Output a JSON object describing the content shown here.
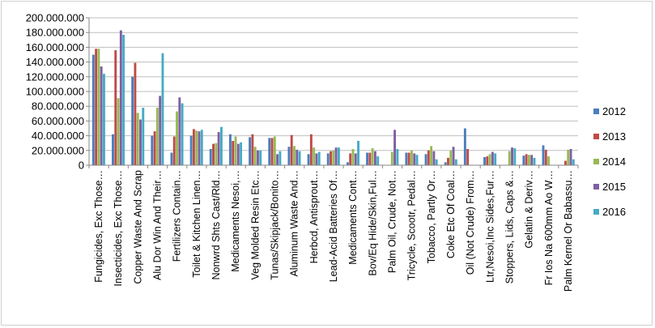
{
  "chart_data": {
    "type": "bar",
    "title": "",
    "xlabel": "",
    "ylabel": "",
    "ylim": [
      0,
      200000000
    ],
    "y_ticks": [
      "0",
      "20.000.000",
      "40.000.000",
      "60.000.000",
      "80.000.000",
      "100.000.000",
      "120.000.000",
      "140.000.000",
      "160.000.000",
      "180.000.000",
      "200.000.000"
    ],
    "grid": "horizontal",
    "legend_position": "right",
    "categories": [
      "Fungicides, Exc Those…",
      "Insecticides, Exc Those…",
      "Copper Waste And Scrap",
      "Alu Dor Win And Their…",
      "Fertilizers Contain…",
      "Toilet & Kitchen Linen…",
      "Nonwrd Shts Cast/Rld…",
      "Medicaments Nesoi,…",
      "Veg Molded Resin Etc…",
      "Tunas/Skipjack/Bonito…",
      "Aluminum Waste And…",
      "Herbcd, Antisprout…",
      "Lead-Acid Batteries Of…",
      "Medicaments Cont…",
      "Bov/Eq Hide/Skin,Ful…",
      "Palm Oil, Crude, Not…",
      "Tricycle, Scootr, Pedal…",
      "Tobacco, Partly Or…",
      "Coke Etc Of Coal…",
      "Oil (Not Crude) From…",
      "Ltr,Nesoi,Inc Sides,Fur…",
      "Stoppers, Lids, Caps &…",
      "Gelatin & Deriv…",
      "Fr Ios Na 600mm Ao W…",
      "Palm Kernel Or Babassu…"
    ],
    "series": [
      {
        "name": "2012",
        "color": "#4a7ebb",
        "values": [
          150000000,
          42000000,
          120000000,
          40000000,
          17000000,
          40000000,
          22000000,
          42000000,
          38000000,
          37000000,
          25000000,
          15000000,
          16000000,
          4000000,
          17000000,
          0,
          17000000,
          15000000,
          4000000,
          50000000,
          11000000,
          0,
          13000000,
          27000000,
          0
        ]
      },
      {
        "name": "2013",
        "color": "#be4b48",
        "values": [
          158000000,
          156000000,
          139000000,
          46000000,
          39000000,
          49000000,
          29000000,
          33000000,
          42000000,
          37000000,
          41000000,
          42000000,
          19000000,
          16000000,
          17000000,
          0,
          17000000,
          20000000,
          10000000,
          22000000,
          12000000,
          0,
          15000000,
          21000000,
          6000000
        ]
      },
      {
        "name": "2014",
        "color": "#98b954",
        "values": [
          158000000,
          91000000,
          71000000,
          78000000,
          73000000,
          47000000,
          30000000,
          39000000,
          25000000,
          39000000,
          26000000,
          24000000,
          20000000,
          22000000,
          23000000,
          18000000,
          20000000,
          26000000,
          20000000,
          0,
          15000000,
          19000000,
          14000000,
          12000000,
          21000000
        ]
      },
      {
        "name": "2015",
        "color": "#7d60a0",
        "values": [
          134000000,
          183000000,
          62000000,
          94000000,
          92000000,
          46000000,
          45000000,
          29000000,
          20000000,
          15000000,
          21000000,
          16000000,
          24000000,
          16000000,
          19000000,
          48000000,
          16000000,
          19000000,
          25000000,
          0,
          18000000,
          24000000,
          14000000,
          0,
          22000000
        ]
      },
      {
        "name": "2016",
        "color": "#46aac5",
        "values": [
          124000000,
          177000000,
          78000000,
          152000000,
          84000000,
          48000000,
          52000000,
          31000000,
          20000000,
          19000000,
          19000000,
          18000000,
          24000000,
          33000000,
          12000000,
          22000000,
          14000000,
          8000000,
          8000000,
          0,
          16000000,
          23000000,
          10000000,
          0,
          8000000
        ]
      }
    ]
  }
}
